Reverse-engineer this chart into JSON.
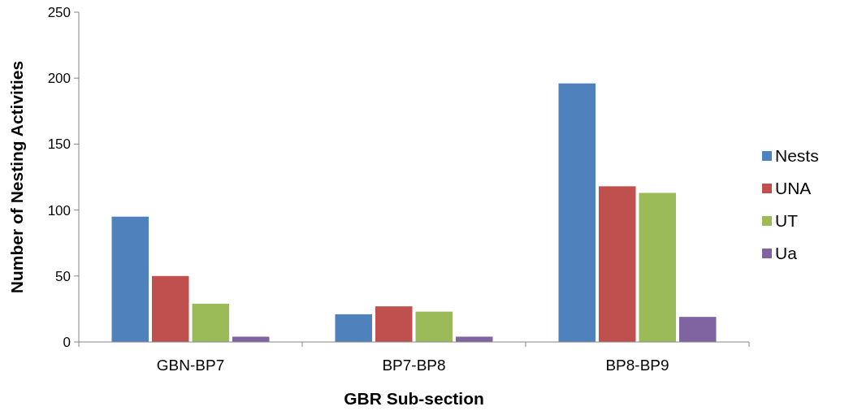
{
  "chart_data": {
    "type": "bar",
    "xlabel": "GBR Sub-section",
    "ylabel": "Number of Nesting Activities",
    "categories": [
      "GBN-BP7",
      "BP7-BP8",
      "BP8-BP9"
    ],
    "series": [
      {
        "name": "Nests",
        "color": "#4f81bd",
        "values": [
          95,
          21,
          196
        ]
      },
      {
        "name": "UNA",
        "color": "#c0504d",
        "values": [
          50,
          27,
          118
        ]
      },
      {
        "name": "UT",
        "color": "#9bbb59",
        "values": [
          29,
          23,
          113
        ]
      },
      {
        "name": "Ua",
        "color": "#8064a2",
        "values": [
          4,
          4,
          19
        ]
      }
    ],
    "ylim": [
      0,
      250
    ],
    "yticks": [
      0,
      50,
      100,
      150,
      200,
      250
    ],
    "legend": "right"
  }
}
